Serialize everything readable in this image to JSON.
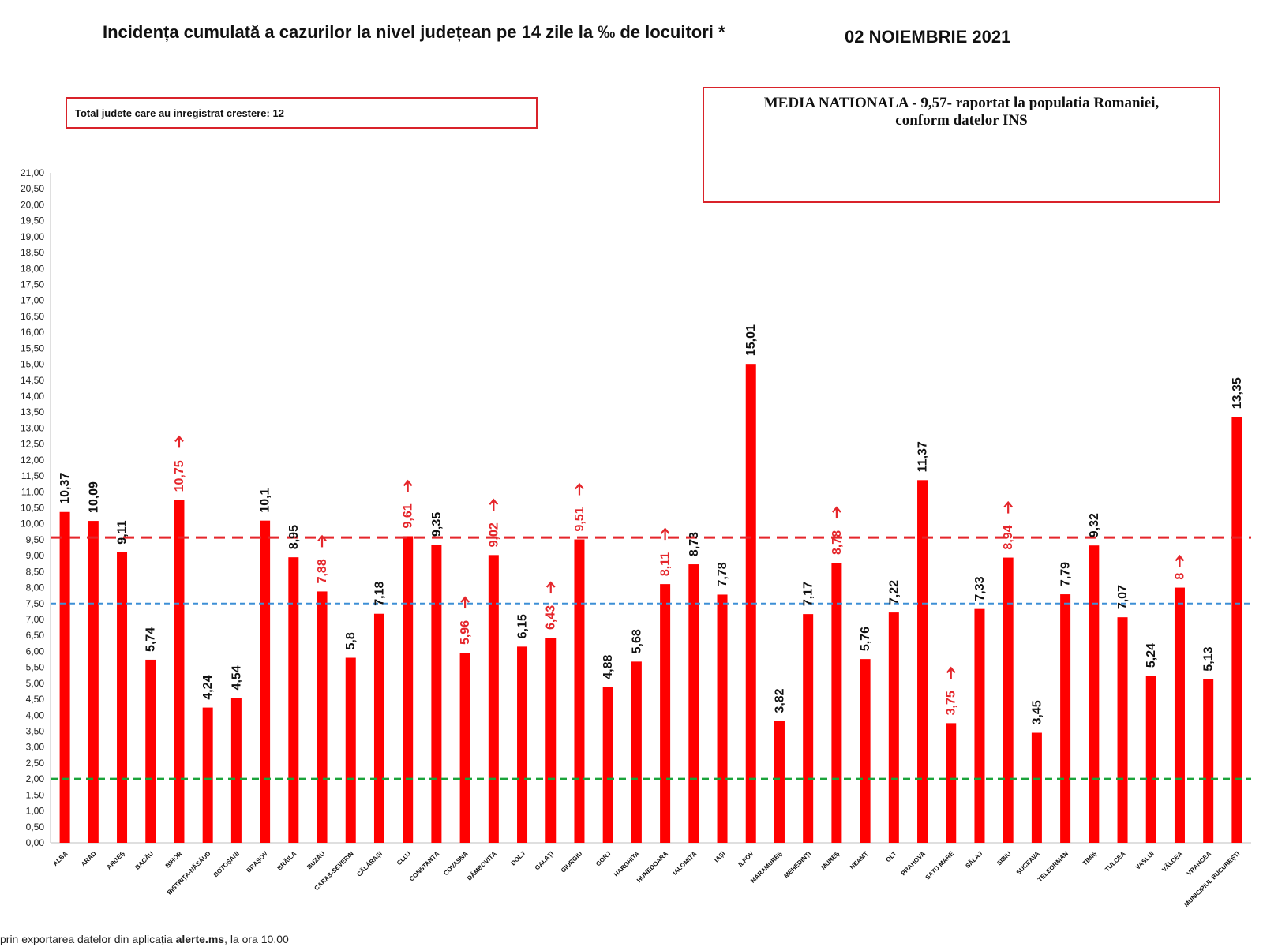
{
  "header": {
    "title": "Incidența cumulată a cazurilor la nivel județean pe 14 zile la ‰ de locuitori *",
    "date": "02 NOIEMBRIE 2021"
  },
  "info_box": {
    "text": "Total judete care au inregistrat crestere: 12"
  },
  "media_box": {
    "line1": "MEDIA NATIONALA - 9,57-  raportat la populatia Romaniei,",
    "line2": "conform datelor INS"
  },
  "footnote": {
    "prefix": "prin exportarea datelor din aplicația ",
    "bold": "alerte.ms",
    "suffix": ", la ora 10.00"
  },
  "colors": {
    "bar": "#ff0000",
    "label_normal": "#111111",
    "label_increase": "#e5262b",
    "line_national": "#e5262b",
    "line_blue": "#3d8fd6",
    "line_green": "#1aa33a"
  },
  "chart_data": {
    "type": "bar",
    "ylim": [
      0,
      21
    ],
    "ytick_step": 0.5,
    "reference_lines": [
      {
        "value": 9.57,
        "color": "red"
      },
      {
        "value": 7.5,
        "color": "blue"
      },
      {
        "value": 2.0,
        "color": "green"
      }
    ],
    "categories": [
      "ALBA",
      "ARAD",
      "ARGEȘ",
      "BACĂU",
      "BIHOR",
      "BISTRIȚA-NĂSĂUD",
      "BOTOȘANI",
      "BRAȘOV",
      "BRĂILA",
      "BUZĂU",
      "CARAȘ-SEVERIN",
      "CĂLĂRAȘI",
      "CLUJ",
      "CONSTANȚA",
      "COVASNA",
      "DÂMBOVIȚA",
      "DOLJ",
      "GALAȚI",
      "GIURGIU",
      "GORJ",
      "HARGHITA",
      "HUNEDOARA",
      "IALOMIȚA",
      "IAȘI",
      "ILFOV",
      "MARAMUREȘ",
      "MEHEDINȚI",
      "MUREȘ",
      "NEAMȚ",
      "OLT",
      "PRAHOVA",
      "SATU MARE",
      "SĂLAJ",
      "SIBIU",
      "SUCEAVA",
      "TELEORMAN",
      "TIMIȘ",
      "TULCEA",
      "VASLUI",
      "VÂLCEA",
      "VRANCEA",
      "MUNICIPIUL BUCUREȘTI"
    ],
    "values": [
      10.37,
      10.09,
      9.11,
      5.74,
      10.75,
      4.24,
      4.54,
      10.1,
      8.95,
      7.88,
      5.8,
      7.18,
      9.61,
      9.35,
      5.96,
      9.02,
      6.15,
      6.43,
      9.51,
      4.88,
      5.68,
      8.11,
      8.73,
      7.78,
      15.01,
      3.82,
      7.17,
      8.78,
      5.76,
      7.22,
      11.37,
      3.75,
      7.33,
      8.94,
      3.45,
      7.79,
      9.32,
      7.07,
      5.24,
      8,
      5.13,
      13.35
    ],
    "value_labels": [
      "10,37",
      "10,09",
      "9,11",
      "5,74",
      "10,75",
      "4,24",
      "4,54",
      "10,1",
      "8,95",
      "7,88",
      "5,8",
      "7,18",
      "9,61",
      "9,35",
      "5,96",
      "9,02",
      "6,15",
      "6,43",
      "9,51",
      "4,88",
      "5,68",
      "8,11",
      "8,73",
      "7,78",
      "15,01",
      "3,82",
      "7,17",
      "8,78",
      "5,76",
      "7,22",
      "11,37",
      "3,75",
      "7,33",
      "8,94",
      "3,45",
      "7,79",
      "9,32",
      "7,07",
      "5,24",
      "8",
      "5,13",
      "13,35"
    ],
    "increase": [
      false,
      false,
      false,
      false,
      true,
      false,
      false,
      false,
      false,
      true,
      false,
      false,
      true,
      false,
      true,
      true,
      false,
      true,
      true,
      false,
      false,
      true,
      false,
      false,
      false,
      false,
      false,
      true,
      false,
      false,
      false,
      true,
      false,
      true,
      false,
      false,
      false,
      false,
      false,
      true,
      false,
      false
    ]
  }
}
